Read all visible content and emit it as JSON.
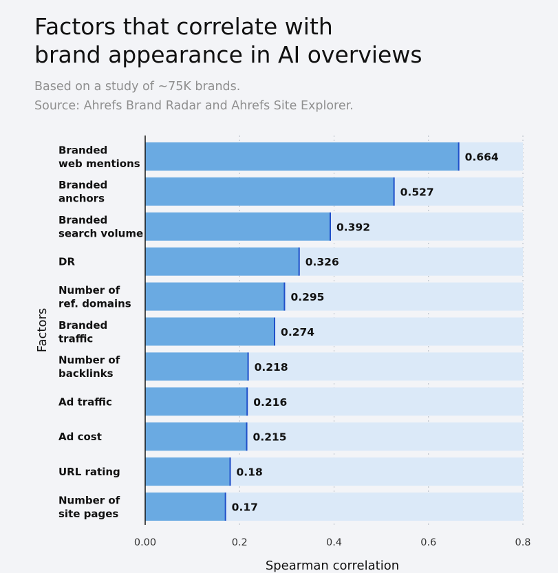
{
  "header": {
    "title_line1": "Factors that correlate with",
    "title_line2": "brand appearance in AI overviews",
    "subtitle_line1": "Based on a study of ~75K brands.",
    "subtitle_line2": "Source: Ahrefs Brand Radar and Ahrefs Site Explorer."
  },
  "colors": {
    "background": "#f3f4f7",
    "bar": "#6aaae2",
    "bar_track": "#dbe9f8",
    "bar_edge": "#1f4fc9",
    "axis": "#111111",
    "grid": "#b5bcc6"
  },
  "chart_data": {
    "type": "bar",
    "orientation": "horizontal",
    "xlabel": "Spearman correlation",
    "ylabel": "Factors",
    "xlim": [
      0,
      0.8
    ],
    "x_ticks": [
      "0.00",
      "0.2",
      "0.4",
      "0.6",
      "0.8"
    ],
    "grid": "vertical dotted",
    "categories": [
      [
        "Branded",
        "web mentions"
      ],
      [
        "Branded",
        "anchors"
      ],
      [
        "Branded",
        "search volume"
      ],
      [
        "DR"
      ],
      [
        "Number of",
        "ref. domains"
      ],
      [
        "Branded",
        "traffic"
      ],
      [
        "Number of",
        "backlinks"
      ],
      [
        "Ad traffic"
      ],
      [
        "Ad cost"
      ],
      [
        "URL rating"
      ],
      [
        "Number of",
        "site pages"
      ]
    ],
    "values": [
      0.664,
      0.527,
      0.392,
      0.326,
      0.295,
      0.274,
      0.218,
      0.216,
      0.215,
      0.18,
      0.17
    ],
    "value_labels": [
      "0.664",
      "0.527",
      "0.392",
      "0.326",
      "0.295",
      "0.274",
      "0.218",
      "0.216",
      "0.215",
      "0.18",
      "0.17"
    ]
  }
}
